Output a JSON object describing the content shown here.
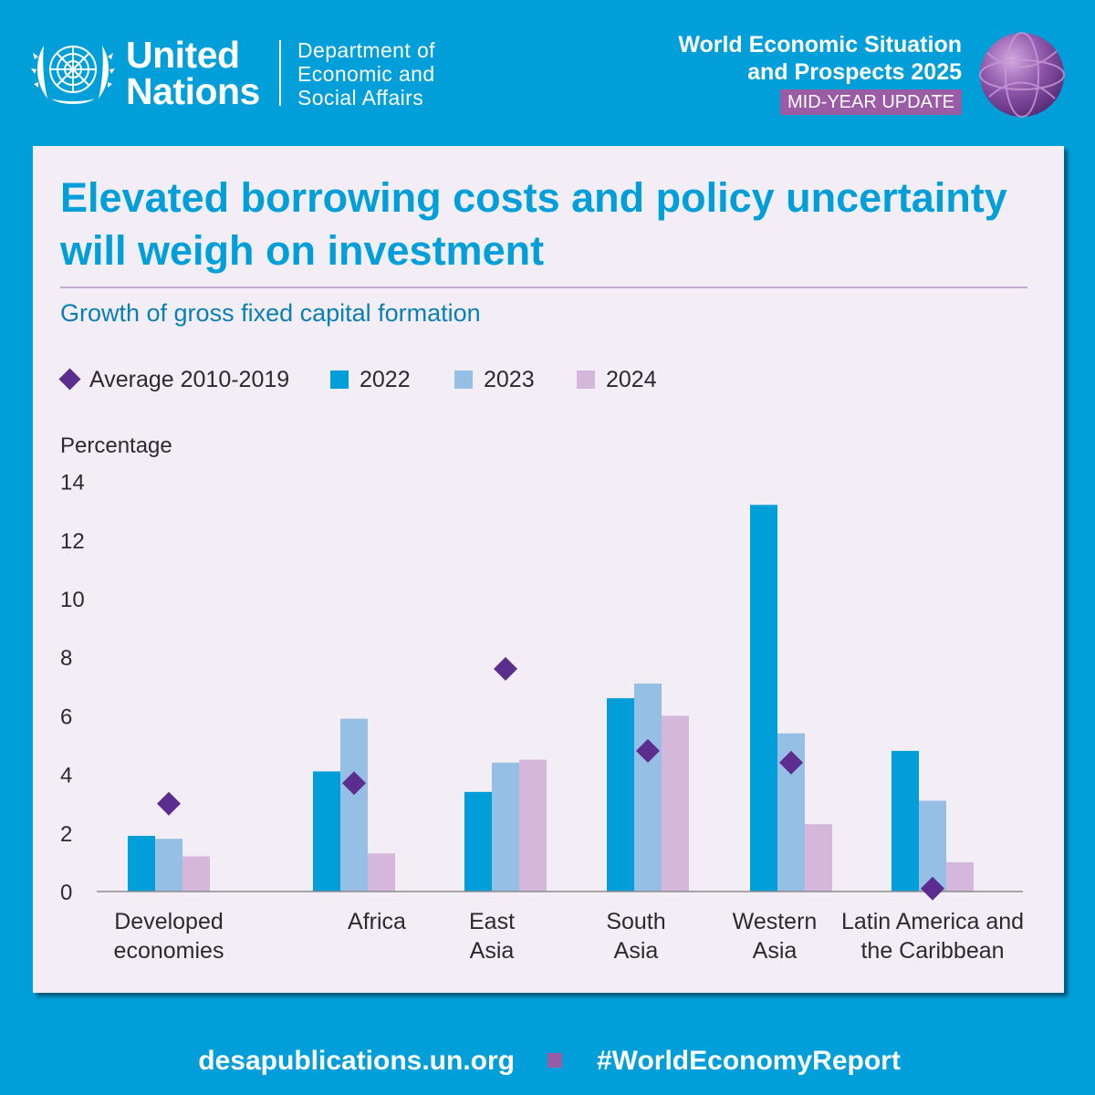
{
  "header": {
    "org_line1": "United",
    "org_line2": "Nations",
    "dept_line1": "Department of",
    "dept_line2": "Economic and",
    "dept_line3": "Social Affairs",
    "report_line1": "World Economic Situation",
    "report_line2": "and Prospects 2025",
    "badge": "MID-YEAR UPDATE"
  },
  "headline": "Elevated borrowing costs and policy uncertainty will weigh on investment",
  "footer": {
    "url": "desapublications.un.org",
    "hashtag": "#WorldEconomyReport"
  },
  "colors": {
    "brand_blue": "#019fda",
    "s2022": "#019fda",
    "s2023": "#96bfe6",
    "s2024": "#d5b7dc",
    "average": "#5b2d8e",
    "accent_purple": "#9b5ca6"
  },
  "chart_data": {
    "type": "bar",
    "title": "Growth of gross fixed capital formation",
    "ylabel": "Percentage",
    "xlabel": "",
    "ylim": [
      0,
      14
    ],
    "yticks": [
      0,
      2,
      4,
      6,
      8,
      10,
      12,
      14
    ],
    "grid": false,
    "legend_position": "top-left",
    "categories": [
      [
        "Developed",
        "economies"
      ],
      [
        "Africa"
      ],
      [
        "East",
        "Asia"
      ],
      [
        "South",
        "Asia"
      ],
      [
        "Western",
        "Asia"
      ],
      [
        "Latin America and",
        "the Caribbean"
      ]
    ],
    "series": [
      {
        "name": "2022",
        "type": "bar",
        "values": [
          1.9,
          4.1,
          3.4,
          6.6,
          13.2,
          4.8
        ]
      },
      {
        "name": "2023",
        "type": "bar",
        "values": [
          1.8,
          5.9,
          4.4,
          7.1,
          5.4,
          3.1
        ]
      },
      {
        "name": "2024",
        "type": "bar",
        "values": [
          1.2,
          1.3,
          4.5,
          6.0,
          2.3,
          1.0
        ]
      },
      {
        "name": "Average 2010-2019",
        "type": "marker",
        "values": [
          3.0,
          3.7,
          7.6,
          4.8,
          4.4,
          0.1
        ]
      }
    ]
  }
}
